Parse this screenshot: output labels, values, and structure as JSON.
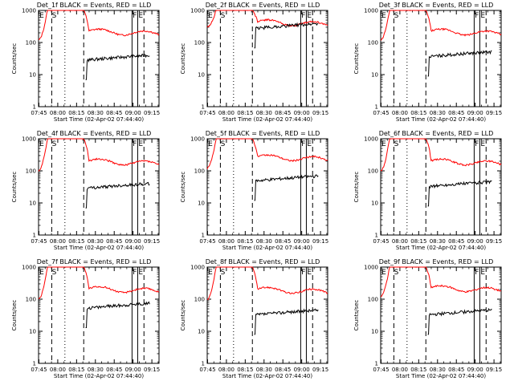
{
  "ylabel": "Counts/sec",
  "xlabel": "Start Time (02-Apr-02 07:44:40)",
  "x_tick_labels": [
    "07:45",
    "08:00",
    "08:15",
    "08:30",
    "08:45",
    "09:00",
    "09:15"
  ],
  "y_tick_labels": [
    "1",
    "10",
    "100",
    "1000"
  ],
  "marker_labels": {
    "E": "E",
    "S": "S",
    "F": "F"
  },
  "colors": {
    "events": "#000000",
    "lld": "#ff0000",
    "axis": "#000000",
    "background": "#ffffff"
  },
  "chart_data": [
    {
      "type": "line",
      "title": "Det_1f BLACK = Events, RED = LLD",
      "yscale": "log",
      "ylim": [
        1,
        1000
      ],
      "x_range_minutes_after_0744_40": [
        0,
        96
      ],
      "markers": {
        "E1": 0.3,
        "S": 15,
        "dotted": 21,
        "dash": 36,
        "F": 74,
        "E2": 79,
        "solid": [
          70,
          79
        ],
        "dash2": [
          10
        ]
      },
      "series": [
        {
          "name": "LLD",
          "color": "#ff0000",
          "levels": {
            "start": 120,
            "peak": 1000,
            "plateau": 190
          }
        },
        {
          "name": "Events",
          "color": "#000000",
          "levels": {
            "mean": 35
          }
        }
      ]
    },
    {
      "type": "line",
      "title": "Det_2f BLACK = Events, RED = LLD",
      "yscale": "log",
      "ylim": [
        1,
        1000
      ],
      "series": [
        {
          "name": "LLD",
          "color": "#ff0000",
          "levels": {
            "start": 300,
            "peak": 1000,
            "plateau": 370
          }
        },
        {
          "name": "Events",
          "color": "#000000",
          "levels": {
            "mean": 340
          }
        }
      ]
    },
    {
      "type": "line",
      "title": "Det_3f BLACK = Events, RED = LLD",
      "yscale": "log",
      "ylim": [
        1,
        1000
      ],
      "series": [
        {
          "name": "LLD",
          "color": "#ff0000",
          "levels": {
            "start": 120,
            "peak": 1000,
            "plateau": 190
          }
        },
        {
          "name": "Events",
          "color": "#000000",
          "levels": {
            "mean": 45
          }
        }
      ]
    },
    {
      "type": "line",
      "title": "Det_4f BLACK = Events, RED = LLD",
      "yscale": "log",
      "ylim": [
        1,
        1000
      ],
      "series": [
        {
          "name": "LLD",
          "color": "#ff0000",
          "levels": {
            "start": 100,
            "peak": 1000,
            "plateau": 170
          }
        },
        {
          "name": "Events",
          "color": "#000000",
          "levels": {
            "mean": 35
          }
        }
      ]
    },
    {
      "type": "line",
      "title": "Det_5f BLACK = Events, RED = LLD",
      "yscale": "log",
      "ylim": [
        1,
        1000
      ],
      "series": [
        {
          "name": "LLD",
          "color": "#ff0000",
          "levels": {
            "start": 120,
            "peak": 1000,
            "plateau": 230
          }
        },
        {
          "name": "Events",
          "color": "#000000",
          "levels": {
            "mean": 60
          }
        }
      ]
    },
    {
      "type": "line",
      "title": "Det_6f BLACK = Events, RED = LLD",
      "yscale": "log",
      "ylim": [
        1,
        1000
      ],
      "series": [
        {
          "name": "LLD",
          "color": "#ff0000",
          "levels": {
            "start": 100,
            "peak": 1000,
            "plateau": 170
          }
        },
        {
          "name": "Events",
          "color": "#000000",
          "levels": {
            "mean": 40
          }
        }
      ]
    },
    {
      "type": "line",
      "title": "Det_7f BLACK = Events, RED = LLD",
      "yscale": "log",
      "ylim": [
        1,
        1000
      ],
      "series": [
        {
          "name": "LLD",
          "color": "#ff0000",
          "levels": {
            "start": 100,
            "peak": 1000,
            "plateau": 180
          }
        },
        {
          "name": "Events",
          "color": "#000000",
          "levels": {
            "mean": 65
          }
        }
      ]
    },
    {
      "type": "line",
      "title": "Det_8f BLACK = Events, RED = LLD",
      "yscale": "log",
      "ylim": [
        1,
        1000
      ],
      "series": [
        {
          "name": "LLD",
          "color": "#ff0000",
          "levels": {
            "start": 100,
            "peak": 1000,
            "plateau": 170
          }
        },
        {
          "name": "Events",
          "color": "#000000",
          "levels": {
            "mean": 40
          }
        }
      ]
    },
    {
      "type": "line",
      "title": "Det_9f BLACK = Events, RED = LLD",
      "yscale": "log",
      "ylim": [
        1,
        1000
      ],
      "series": [
        {
          "name": "LLD",
          "color": "#ff0000",
          "levels": {
            "start": 120,
            "peak": 1000,
            "plateau": 190
          }
        },
        {
          "name": "Events",
          "color": "#000000",
          "levels": {
            "mean": 40
          }
        }
      ]
    }
  ]
}
